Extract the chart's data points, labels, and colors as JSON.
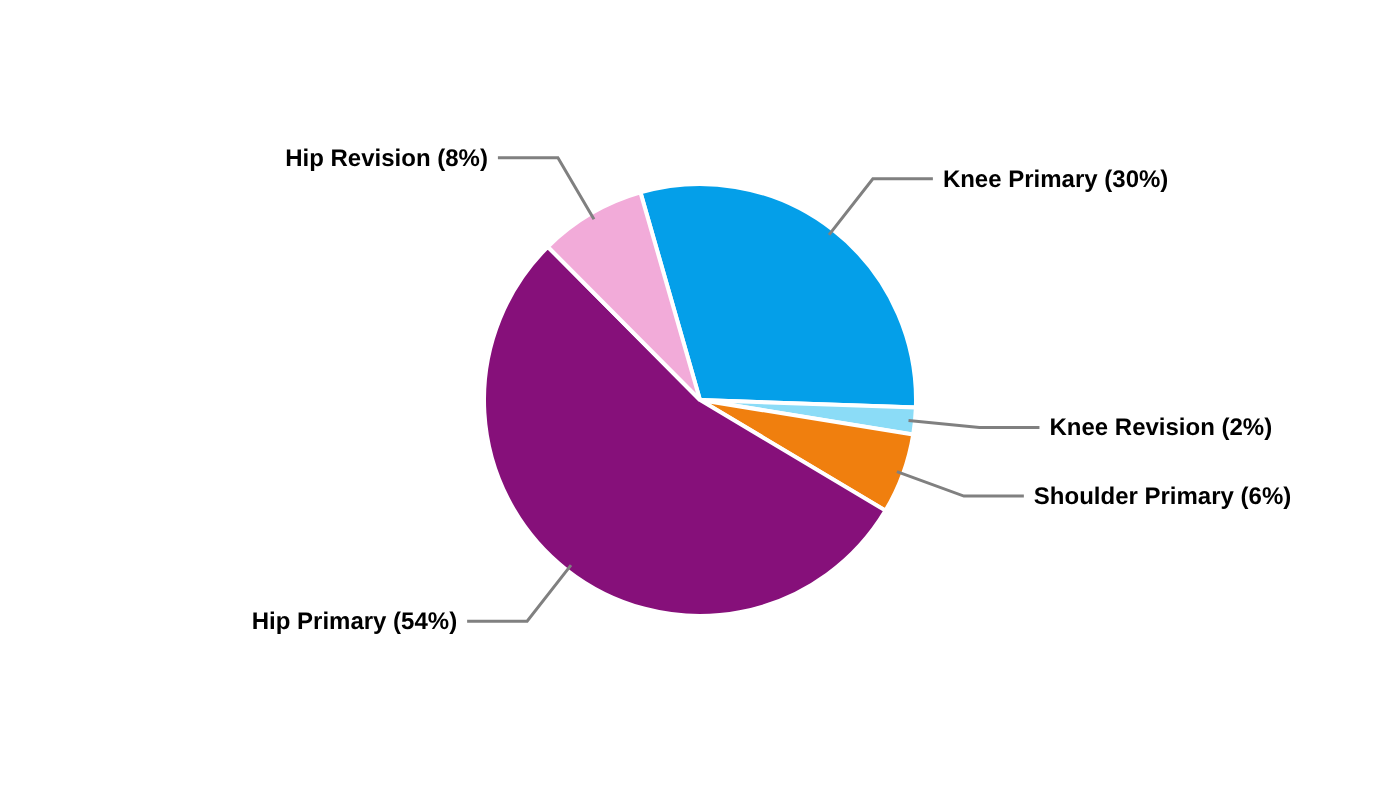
{
  "chart_data": {
    "type": "pie",
    "categories": [
      "Knee Primary",
      "Knee Revision",
      "Shoulder Primary",
      "Hip Primary",
      "Hip Revision"
    ],
    "values": [
      30,
      2,
      6,
      54,
      8
    ],
    "value_labels": [
      "(30%)",
      "(2%)",
      "(6%)",
      "(54%)",
      "(8%)"
    ],
    "colors": [
      "#049fe9",
      "#8bdcf7",
      "#f07f0e",
      "#86107a",
      "#f2abd9"
    ]
  }
}
